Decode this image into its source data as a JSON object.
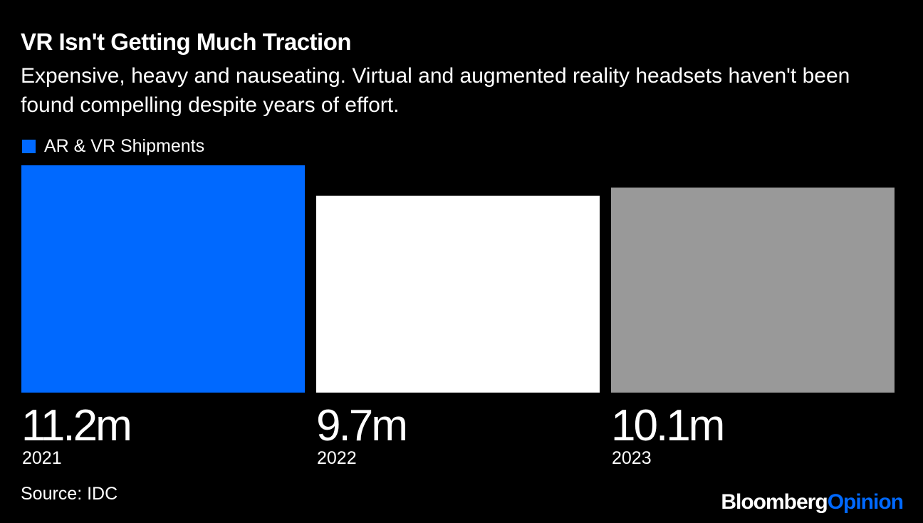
{
  "chart_data": {
    "type": "bar",
    "title": "VR Isn't Getting Much Traction",
    "subtitle": "Expensive, heavy and nauseating. Virtual and augmented reality headsets haven't been found compelling despite years of effort.",
    "legend": [
      "AR & VR Shipments"
    ],
    "categories": [
      "2021",
      "2022",
      "2023"
    ],
    "values": [
      11.2,
      9.7,
      10.1
    ],
    "value_labels": [
      "11.2m",
      "9.7m",
      "10.1m"
    ],
    "unit": "m",
    "ylim": [
      0,
      11.2
    ],
    "bar_colors": [
      "#0069ff",
      "#ffffff",
      "#999999"
    ],
    "legend_color": "#0069ff",
    "xlabel": "",
    "ylabel": ""
  },
  "footer": {
    "source": "Source: IDC",
    "brand_part1": "Bloomberg",
    "brand_part2": "Opinion"
  }
}
